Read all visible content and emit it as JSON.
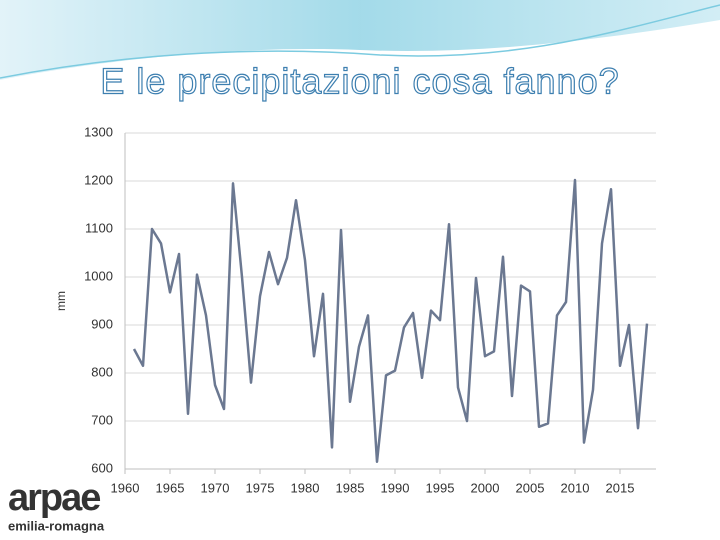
{
  "chart_data": {
    "type": "line",
    "title": "E le precipitazioni cosa fanno?",
    "ylabel": "mm",
    "x": [
      1961,
      1962,
      1963,
      1964,
      1965,
      1966,
      1967,
      1968,
      1969,
      1970,
      1971,
      1972,
      1973,
      1974,
      1975,
      1976,
      1977,
      1978,
      1979,
      1980,
      1981,
      1982,
      1983,
      1984,
      1985,
      1986,
      1987,
      1988,
      1989,
      1990,
      1991,
      1992,
      1993,
      1994,
      1995,
      1996,
      1997,
      1998,
      1999,
      2000,
      2001,
      2002,
      2003,
      2004,
      2005,
      2006,
      2007,
      2008,
      2009,
      2010,
      2011,
      2012,
      2013,
      2014,
      2015,
      2016,
      2017,
      2018
    ],
    "values": [
      850,
      815,
      1100,
      1070,
      968,
      1048,
      715,
      1005,
      920,
      775,
      725,
      1195,
      1000,
      780,
      960,
      1052,
      985,
      1040,
      1160,
      1035,
      835,
      965,
      645,
      1098,
      740,
      855,
      920,
      615,
      795,
      805,
      895,
      925,
      790,
      930,
      910,
      1110,
      770,
      700,
      998,
      835,
      845,
      1042,
      752,
      982,
      970,
      688,
      695,
      920,
      948,
      1202,
      655,
      765,
      1070,
      1183,
      815,
      900,
      685,
      903
    ],
    "color": "#6b7891",
    "xlim": [
      1960,
      2019
    ],
    "xticks": [
      1960,
      1965,
      1970,
      1975,
      1980,
      1985,
      1990,
      1995,
      2000,
      2005,
      2010,
      2015
    ],
    "ylim": [
      600,
      1300
    ],
    "yticks": [
      600,
      700,
      800,
      900,
      1000,
      1100,
      1200,
      1300
    ],
    "grid": true
  },
  "logo": {
    "name": "arpae",
    "region": "emilia-romagna"
  }
}
